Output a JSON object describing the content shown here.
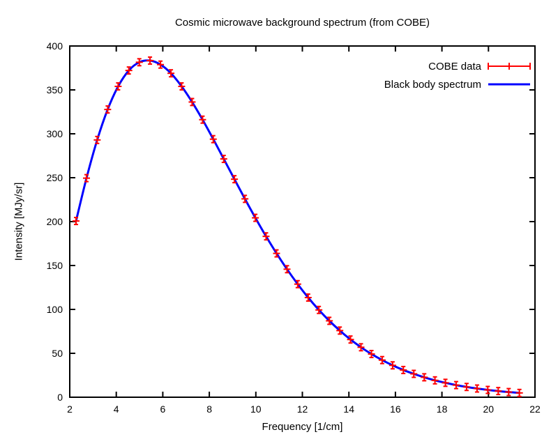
{
  "chart_data": {
    "type": "line",
    "title": "Cosmic microwave background spectrum (from COBE)",
    "xlabel": "Frequency [1/cm]",
    "ylabel": "Intensity [MJy/sr]",
    "xlim": [
      2,
      22
    ],
    "ylim": [
      0,
      400
    ],
    "xticks": [
      2,
      4,
      6,
      8,
      10,
      12,
      14,
      16,
      18,
      20,
      22
    ],
    "yticks": [
      0,
      50,
      100,
      150,
      200,
      250,
      300,
      350,
      400
    ],
    "grid": false,
    "legend_position": "top-right-inside",
    "series": [
      {
        "name": "COBE data",
        "type": "errorbars",
        "marker": "plus",
        "color": "#ff0000",
        "points": [
          [
            2.27,
            200.7
          ],
          [
            2.72,
            249.5
          ],
          [
            3.18,
            293.0
          ],
          [
            3.63,
            327.7
          ],
          [
            4.08,
            354.0
          ],
          [
            4.54,
            372.1
          ],
          [
            4.99,
            381.5
          ],
          [
            5.45,
            383.4
          ],
          [
            5.9,
            378.8
          ],
          [
            6.35,
            368.9
          ],
          [
            6.81,
            354.0
          ],
          [
            7.26,
            336.2
          ],
          [
            7.71,
            316.1
          ],
          [
            8.17,
            293.9
          ],
          [
            8.62,
            271.4
          ],
          [
            9.08,
            248.3
          ],
          [
            9.53,
            225.9
          ],
          [
            9.98,
            204.3
          ],
          [
            10.44,
            183.2
          ],
          [
            10.89,
            163.8
          ],
          [
            11.34,
            145.8
          ],
          [
            11.8,
            128.8
          ],
          [
            12.25,
            113.5
          ],
          [
            12.71,
            99.4
          ],
          [
            13.16,
            87.0
          ],
          [
            13.61,
            75.9
          ],
          [
            14.07,
            65.7
          ],
          [
            14.52,
            56.9
          ],
          [
            14.97,
            49.2
          ],
          [
            15.43,
            42.3
          ],
          [
            15.88,
            36.3
          ],
          [
            16.34,
            31.0
          ],
          [
            16.79,
            26.6
          ],
          [
            17.24,
            22.7
          ],
          [
            17.7,
            19.2
          ],
          [
            18.15,
            16.4
          ],
          [
            18.61,
            13.8
          ],
          [
            19.06,
            11.7
          ],
          [
            19.51,
            9.9
          ],
          [
            19.97,
            8.3
          ],
          [
            20.42,
            7.0
          ],
          [
            20.87,
            5.9
          ],
          [
            21.33,
            4.9
          ]
        ]
      },
      {
        "name": "Black body spectrum",
        "type": "line",
        "color": "#0000ff",
        "line_width": 3,
        "note": "smooth Planck curve passing through the COBE data points"
      }
    ]
  },
  "colors": {
    "background": "#ffffff",
    "foreground": "#000000",
    "cobe_data": "#ff0000",
    "blackbody": "#0000ff"
  }
}
